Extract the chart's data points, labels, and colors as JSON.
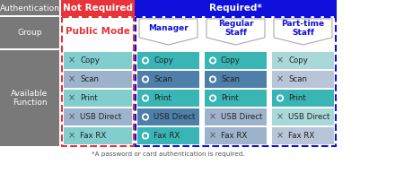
{
  "fig_w": 4.5,
  "fig_h": 2.12,
  "dpi": 100,
  "bg": "#ffffff",
  "gray": "#797979",
  "gray_line": "#aaaaaa",
  "red": "#e8333a",
  "blue": "#1010dd",
  "white": "#ffffff",
  "dark_text": "#333333",
  "left_labels": [
    "Authentication",
    "Group",
    "Available\nFunction"
  ],
  "not_req_header": "Not Required",
  "req_header": "Required*",
  "public_mode": "Public Mode",
  "group_labels": [
    "Manager",
    "Regular\nStaff",
    "Part-time\nStaff"
  ],
  "functions": [
    "Copy",
    "Scan",
    "Print",
    "USB Direct",
    "Fax RX"
  ],
  "col_colors_0": [
    "#82cece",
    "#9db3cc",
    "#82cece",
    "#9db3cc",
    "#82cece"
  ],
  "col_access_0": [
    false,
    false,
    false,
    false,
    false
  ],
  "col_colors_1": [
    "#3ab5b5",
    "#4d7fa8",
    "#3ab5b5",
    "#4d7fa8",
    "#3ab5b5"
  ],
  "col_access_1": [
    true,
    true,
    true,
    true,
    true
  ],
  "col_colors_2": [
    "#3ab5b5",
    "#4d7fa8",
    "#3ab5b5",
    "#9db3cc",
    "#9db3cc"
  ],
  "col_access_2": [
    true,
    true,
    true,
    false,
    false
  ],
  "col_colors_3": [
    "#aad8d8",
    "#b8c4d8",
    "#3ab5b5",
    "#aad8d8",
    "#b8c4d8"
  ],
  "col_access_3": [
    false,
    false,
    true,
    false,
    false
  ],
  "footnote": "*A password or card authentication is required."
}
